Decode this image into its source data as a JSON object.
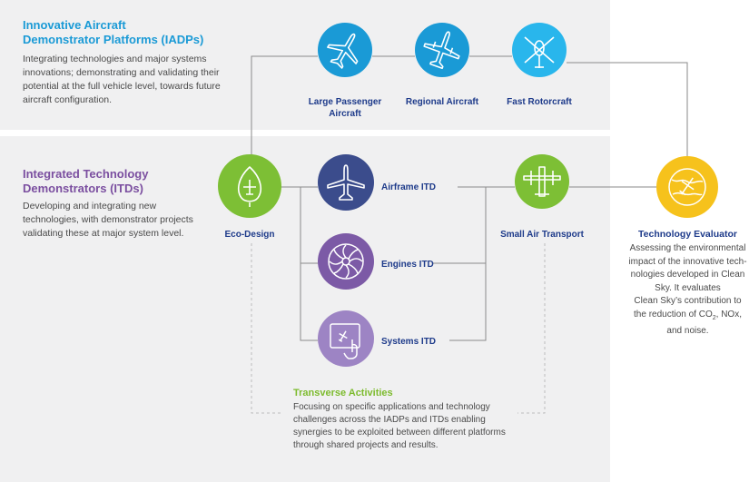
{
  "iadp": {
    "title_line1": "Innovative Aircraft",
    "title_line2": "Demonstrator Platforms (IADPs)",
    "desc_line1": "Integrating technologies and major systems",
    "desc_line2": "innovations; demonstrating and validating their",
    "desc_line3": "potential at the full vehicle level, towards future",
    "desc_line4": "aircraft configuration."
  },
  "itd": {
    "title_line1": "Integrated Technology",
    "title_line2": "Demonstrators (ITDs)",
    "desc_line1": "Developing and integrating new",
    "desc_line2": "technologies, with demonstrator projects",
    "desc_line3": "validating these at major system level."
  },
  "nodes": {
    "large_passenger_line1": "Large Passenger",
    "large_passenger_line2": "Aircraft",
    "regional": "Regional Aircraft",
    "rotorcraft": "Fast Rotorcraft",
    "eco_design": "Eco-Design",
    "airframe": "Airframe ITD",
    "engines": "Engines ITD",
    "systems": "Systems ITD",
    "small_air": "Small Air Transport",
    "evaluator": "Technology Evaluator"
  },
  "evaluator_desc": {
    "line1": "Assessing the environmental",
    "line2": "impact of the innovative tech-",
    "line3": "nologies developed in Clean",
    "line4": "Sky. It evaluates",
    "line5": "Clean Sky’s contribution to",
    "line6_pre": "the reduction of CO",
    "line6_sub": "2",
    "line6_post": ", NOx,",
    "line7": "and noise."
  },
  "transverse": {
    "title": "Transverse Activities",
    "line1": "Focusing on specific applications and technology",
    "line2": "challenges across the IADPs and ITDs enabling",
    "line3": "synergies to be exploited between different platforms",
    "line4": "through shared projects and results."
  },
  "colors": {
    "panel_bg": "#f0f0f1",
    "blue_title": "#1a9ad6",
    "purple_title": "#7b4fa0",
    "green_title": "#7dbb2e",
    "circle_blue": "#1a9ad6",
    "circle_light_blue": "#29b6ec",
    "circle_green": "#7dbf35",
    "circle_navy": "#3b4c8c",
    "circle_purple": "#7c5aa6",
    "circle_light_purple": "#9d84c4",
    "circle_yellow": "#f6c21c"
  }
}
